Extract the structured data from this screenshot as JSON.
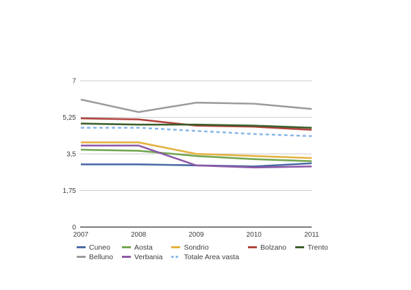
{
  "chart_data": {
    "type": "line",
    "x_labels": [
      "2007",
      "2008",
      "2009",
      "2010",
      "2011"
    ],
    "y_ticks": [
      0,
      1.75,
      3.5,
      5.25,
      7
    ],
    "y_tick_labels": [
      "0",
      "1,75",
      "3,5",
      "5,25",
      "7"
    ],
    "ylim": [
      0,
      7
    ],
    "grid": "horizontal-gridlines-on",
    "legend_position": "bottom",
    "styles": {
      "background": "#ffffff",
      "grid_color": "#cbcbcb",
      "axis_color": "#4f4f4f",
      "text_color": "#3d3d3d"
    },
    "series": [
      {
        "name": "Cuneo",
        "color": "#4a69a5",
        "dash": "solid",
        "values": [
          3.0,
          3.0,
          2.95,
          2.9,
          3.05
        ]
      },
      {
        "name": "Aosta",
        "color": "#72a64f",
        "dash": "solid",
        "values": [
          3.7,
          3.65,
          3.4,
          3.25,
          3.15
        ]
      },
      {
        "name": "Sondrio",
        "color": "#e3b13d",
        "dash": "solid",
        "values": [
          4.05,
          4.05,
          3.5,
          3.4,
          3.3
        ]
      },
      {
        "name": "Bolzano",
        "color": "#b2423c",
        "dash": "solid",
        "values": [
          5.2,
          5.15,
          4.85,
          4.8,
          4.65
        ]
      },
      {
        "name": "Trento",
        "color": "#3b5e2b",
        "dash": "solid",
        "values": [
          4.95,
          4.9,
          4.9,
          4.85,
          4.75
        ]
      },
      {
        "name": "Belluno",
        "color": "#9b9b9b",
        "dash": "solid",
        "values": [
          6.1,
          5.5,
          5.95,
          5.9,
          5.65
        ]
      },
      {
        "name": "Verbania",
        "color": "#8d59a8",
        "dash": "solid",
        "values": [
          3.9,
          3.9,
          2.95,
          2.85,
          2.9
        ]
      },
      {
        "name": "Totale Area vasta",
        "color": "#87b7e8",
        "dash": "dashed",
        "values": [
          4.75,
          4.75,
          4.6,
          4.45,
          4.35
        ]
      }
    ]
  }
}
